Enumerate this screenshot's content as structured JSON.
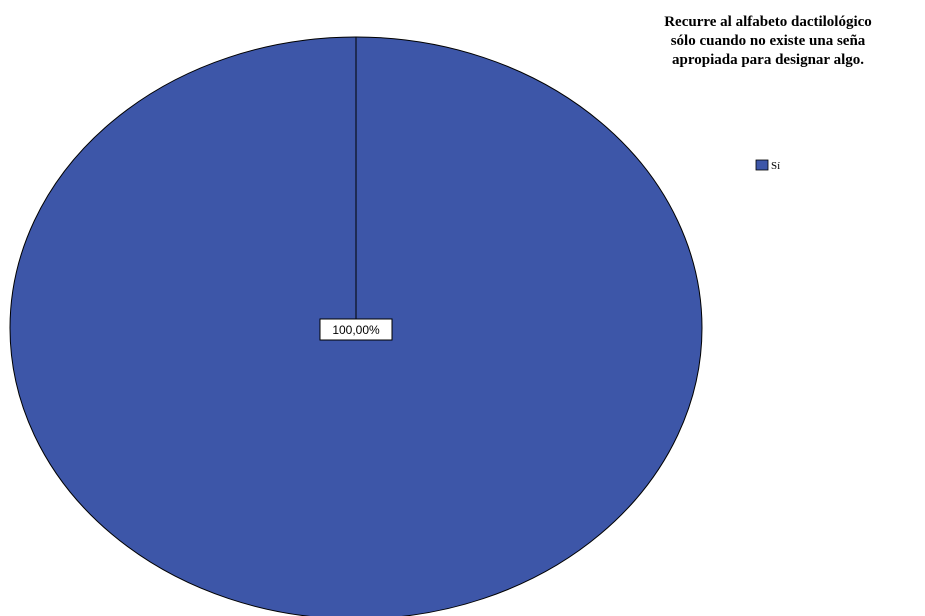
{
  "chart_data": {
    "type": "pie",
    "title": "Recurre al alfabeto dactilológico sólo cuando no existe una seña apropiada para designar algo.",
    "title_lines": [
      "Recurre al alfabeto dactilológico",
      "sólo cuando no existe una seña",
      "apropiada para designar algo."
    ],
    "categories": [
      "Sí"
    ],
    "values": [
      100
    ],
    "data_labels": [
      "100,00%"
    ],
    "colors": [
      "#3d56a8"
    ],
    "legend": {
      "placement": "right",
      "entries": [
        "Sí"
      ]
    }
  }
}
